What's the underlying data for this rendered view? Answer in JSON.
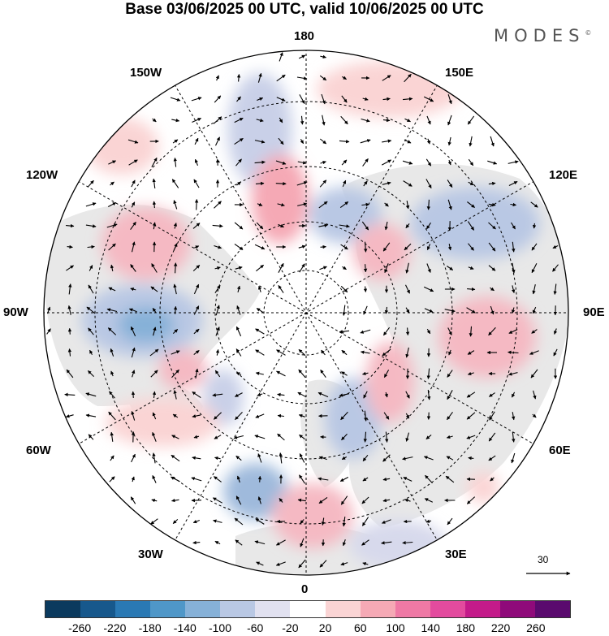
{
  "title": "Base 03/06/2025 00 UTC, valid 10/06/2025 00 UTC",
  "brand": "MODES",
  "brand_mark": "©",
  "longitude_labels": {
    "top": "180",
    "bottom": "0",
    "left": "90W",
    "right": "90E",
    "upper_left_1": "150W",
    "upper_left_2": "120W",
    "lower_left_1": "60W",
    "lower_left_2": "30W",
    "upper_right_1": "150E",
    "upper_right_2": "120E",
    "lower_right_1": "60E",
    "lower_right_2": "30E"
  },
  "vector_key": "30",
  "colorbar": {
    "colors": [
      "#0b3a5e",
      "#17588c",
      "#2a79b4",
      "#4f97c8",
      "#86b1d8",
      "#b9c8e4",
      "#e1e1f0",
      "#ffffff",
      "#fad4d4",
      "#f5a9b5",
      "#ef79a5",
      "#e34b9e",
      "#c41b8a",
      "#8f0a7a",
      "#5a0a6e"
    ],
    "ticks": [
      "-260",
      "-220",
      "-180",
      "-140",
      "-100",
      "-60",
      "-20",
      "20",
      "60",
      "100",
      "140",
      "180",
      "220",
      "260"
    ]
  },
  "map": {
    "projection": "north-polar-stereographic",
    "field": "anomaly-shading-with-wind-vectors",
    "land_color": "#ececec",
    "ocean_color": "#ffffff"
  }
}
